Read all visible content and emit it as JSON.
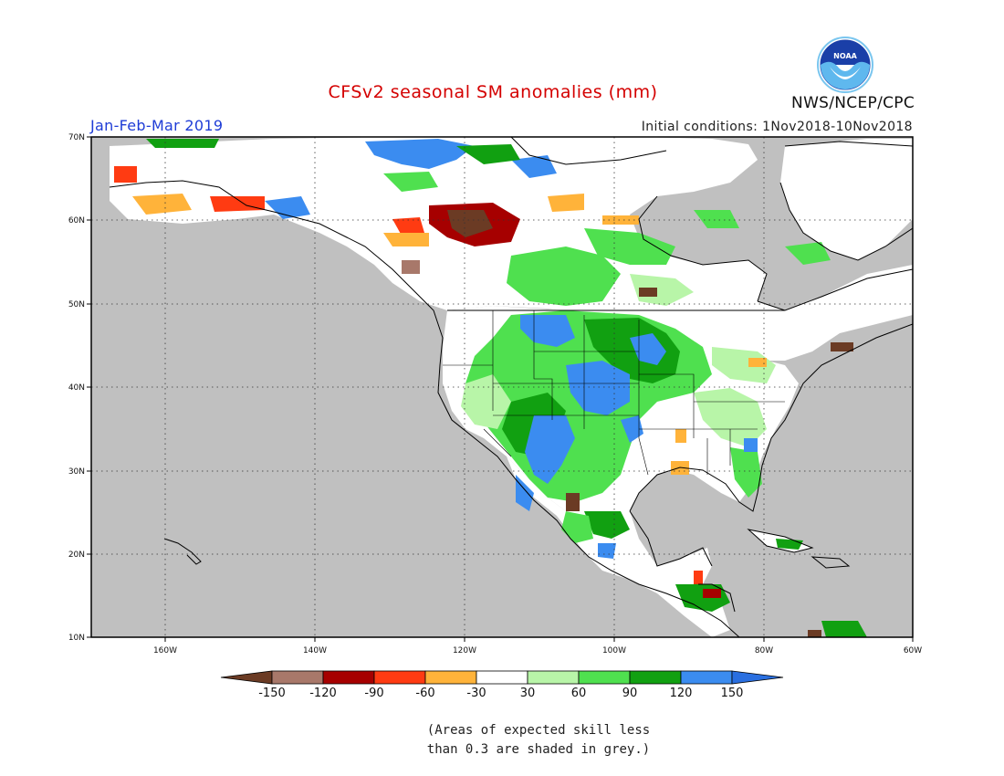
{
  "header": {
    "title": "CFSv2 seasonal SM anomalies (mm)",
    "period": "Jan-Feb-Mar 2019",
    "initial_conditions": "Initial conditions: 1Nov2018-10Nov2018",
    "agency": "NWS/NCEP/CPC",
    "logo_text": "NOAA"
  },
  "axes": {
    "lon_labels": [
      "160W",
      "140W",
      "120W",
      "100W",
      "80W",
      "60W"
    ],
    "lat_labels": [
      "70N",
      "60N",
      "50N",
      "40N",
      "30N",
      "20N",
      "10N"
    ]
  },
  "colorbar": {
    "labels": [
      "-150",
      "-120",
      "-90",
      "-60",
      "-30",
      "30",
      "60",
      "90",
      "120",
      "150"
    ],
    "colors": [
      "#6b3b24",
      "#a8786a",
      "#a60000",
      "#ff3b12",
      "#ffb33a",
      "#ffffff",
      "#b8f5a8",
      "#4fe04f",
      "#11a011",
      "#3b8cf0",
      "#2a6fe0"
    ]
  },
  "note": {
    "line1": "(Areas of expected skill less",
    "line2": "than 0.3 are shaded in grey.)"
  },
  "colors": {
    "grey_no_skill": "#c0c0c0",
    "title_red": "#d40000",
    "period_blue": "#1e3cd6"
  }
}
